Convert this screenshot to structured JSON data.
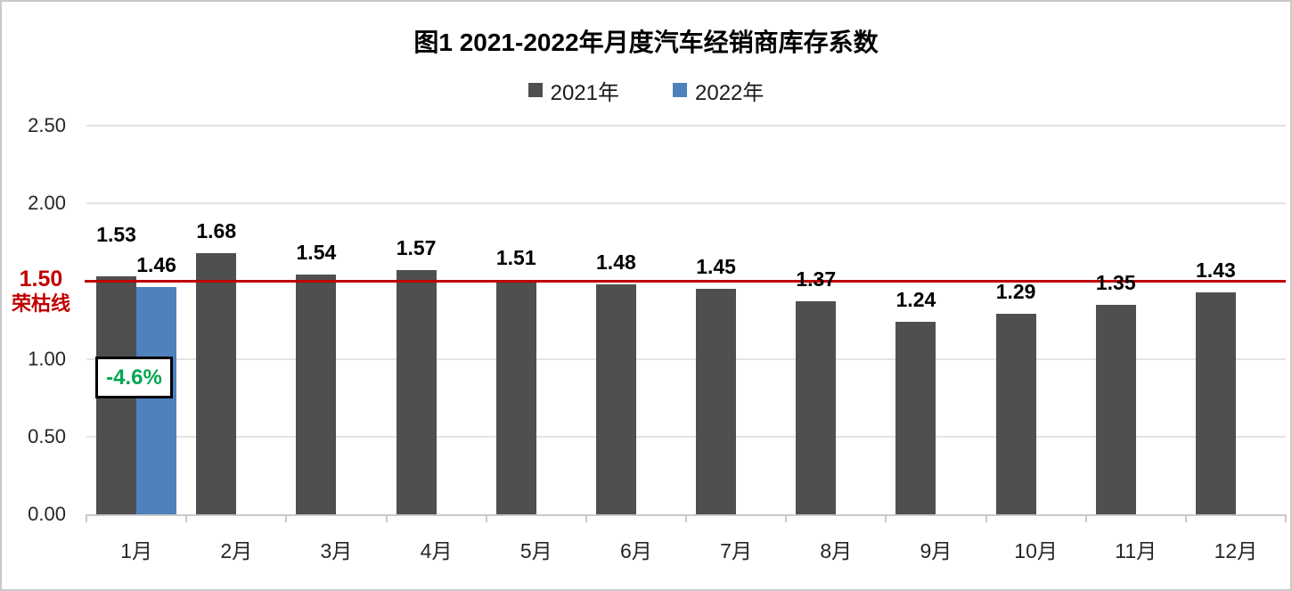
{
  "title": "图1  2021-2022年月度汽车经销商库存系数",
  "legend": [
    {
      "label": "2021年",
      "color": "#4F4F4F"
    },
    {
      "label": "2022年",
      "color": "#4F81BD"
    }
  ],
  "chart_data": {
    "type": "bar",
    "title": "图1  2021-2022年月度汽车经销商库存系数",
    "categories": [
      "1月",
      "2月",
      "3月",
      "4月",
      "5月",
      "6月",
      "7月",
      "8月",
      "9月",
      "10月",
      "11月",
      "12月"
    ],
    "series": [
      {
        "name": "2021年",
        "color": "#4F4F4F",
        "values": [
          1.53,
          1.68,
          1.54,
          1.57,
          1.51,
          1.48,
          1.45,
          1.37,
          1.24,
          1.29,
          1.35,
          1.43
        ],
        "label_raise": [
          22,
          0,
          0,
          0,
          0,
          0,
          0,
          0,
          0,
          0,
          0,
          0
        ]
      },
      {
        "name": "2022年",
        "color": "#4F81BD",
        "values": [
          1.46,
          null,
          null,
          null,
          null,
          null,
          null,
          null,
          null,
          null,
          null,
          null
        ],
        "label_raise": [
          0,
          0,
          0,
          0,
          0,
          0,
          0,
          0,
          0,
          0,
          0,
          0
        ]
      }
    ],
    "ylim": [
      0,
      2.5
    ],
    "yticks": [
      0.0,
      0.5,
      1.0,
      1.5,
      2.0,
      2.5
    ],
    "ytick_labels": [
      "0.00",
      "0.50",
      "1.00",
      "1.50",
      "2.00",
      "2.50"
    ],
    "grid": true,
    "legend_position": "top",
    "reference_line": {
      "value": 1.5,
      "color": "#C00000",
      "label_line1": "1.50",
      "label_line2": "荣枯线"
    },
    "annotation": {
      "text": "-4.6%",
      "color": "#00A650",
      "border_color": "#000000",
      "background": "#FFFFFF",
      "attached_to": "1月"
    }
  }
}
